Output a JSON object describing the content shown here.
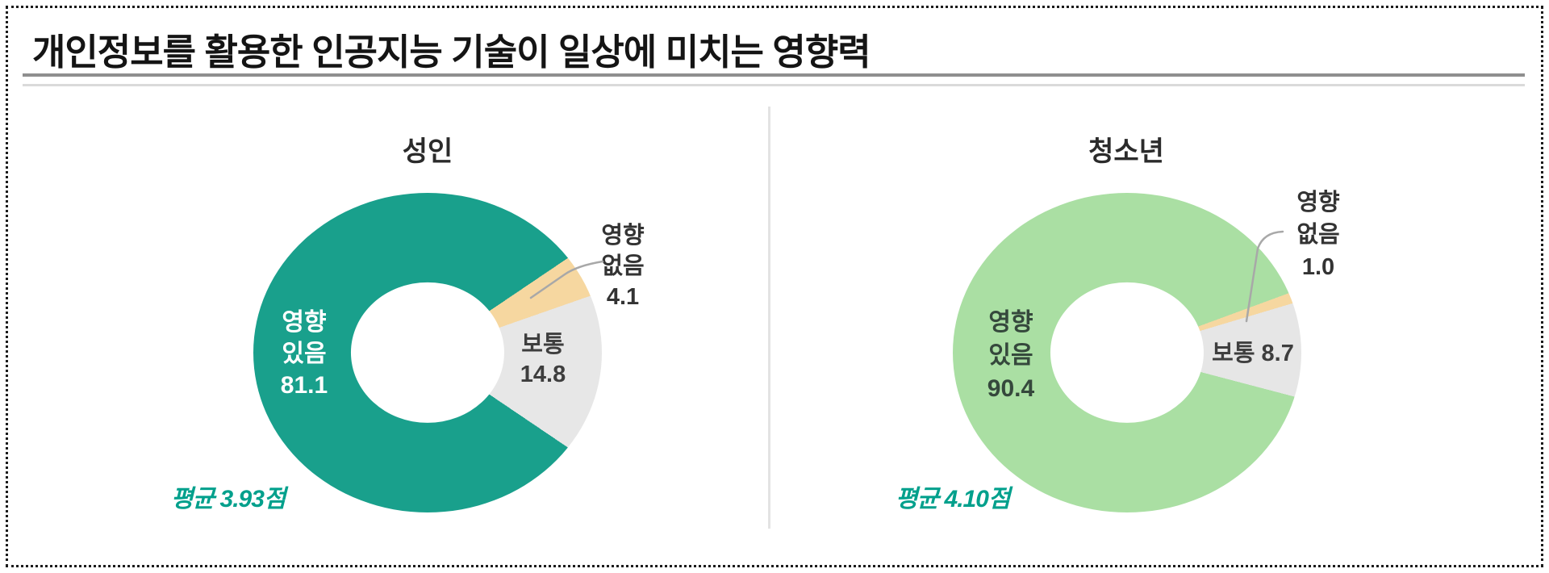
{
  "header": {
    "title": "개인정보를 활용한 인공지능 기술이 일상에 미치는 영향력"
  },
  "style": {
    "accent_teal": "#19a08c",
    "accent_light_green": "#aadfa3",
    "accent_tan": "#f6d7a0",
    "neutral_gray": "#e7e7e7",
    "average_text_color": "#00a08c"
  },
  "chart_data": [
    {
      "type": "pie",
      "variant": "donut",
      "title": "성인",
      "slices": [
        {
          "label": "영향 있음",
          "value": 81.1,
          "color": "#19a08c"
        },
        {
          "label": "보통",
          "value": 14.8,
          "color": "#e7e7e7"
        },
        {
          "label": "영향 없음",
          "value": 4.1,
          "color": "#f6d7a0"
        }
      ],
      "annotations": {
        "main": {
          "lines": [
            "영향",
            "있음",
            "81.1"
          ]
        },
        "neutral": {
          "lines": [
            "보통",
            "14.8"
          ]
        },
        "none": {
          "lines": [
            "영향",
            "없음",
            "4.1"
          ]
        },
        "average": "평균 3.93점"
      },
      "layout": {
        "start_angle_deg": 56,
        "order_from_start": [
          "영향 없음",
          "보통",
          "영향 있음"
        ],
        "hole_ratio": 0.44,
        "legend": "off",
        "grid": "off"
      }
    },
    {
      "type": "pie",
      "variant": "donut",
      "title": "청소년",
      "slices": [
        {
          "label": "영향 있음",
          "value": 90.4,
          "color": "#aadfa3"
        },
        {
          "label": "보통",
          "value": 8.7,
          "color": "#e6e6e6"
        },
        {
          "label": "영향 없음",
          "value": 1.0,
          "color": "#f6d7a0"
        }
      ],
      "annotations": {
        "main": {
          "lines": [
            "영향",
            "있음",
            "90.4"
          ]
        },
        "neutral": {
          "lines": [
            "보통 8.7"
          ]
        },
        "none": {
          "lines": [
            "영향",
            "없음",
            "1.0"
          ]
        },
        "average": "평균 4.10점"
      },
      "layout": {
        "start_angle_deg": 69.8,
        "order_from_start": [
          "영향 없음",
          "보통",
          "영향 있음"
        ],
        "hole_ratio": 0.44,
        "legend": "off",
        "grid": "off"
      }
    }
  ]
}
